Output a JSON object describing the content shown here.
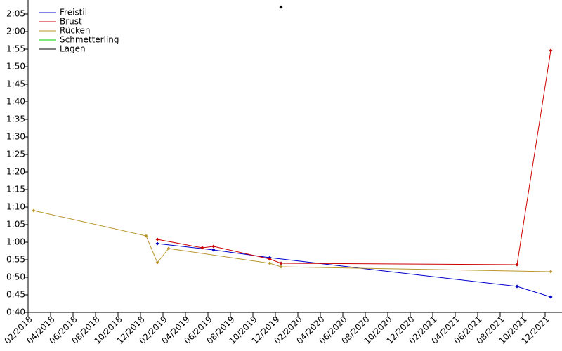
{
  "chart_data": {
    "type": "line",
    "series": [
      {
        "name": "Freistil",
        "color": "#0000cc",
        "x": [
          "2019-01",
          "2019-06",
          "2019-11",
          "2021-09",
          "2021-12"
        ],
        "values": [
          59.6,
          57.8,
          55.6,
          47.4,
          44.4
        ]
      },
      {
        "name": "Brust",
        "color": "#cc0000",
        "x": [
          "2019-01",
          "2019-05",
          "2019-06",
          "2019-11",
          "2019-12",
          "2021-09",
          "2021-12"
        ],
        "values": [
          60.8,
          58.4,
          58.8,
          55.2,
          54.0,
          53.6,
          114.6
        ]
      },
      {
        "name": "Rücken",
        "color": "#b8962e",
        "x": [
          "2018-02",
          "2018-12",
          "2019-01",
          "2019-02",
          "2019-11",
          "2019-12",
          "2021-12"
        ],
        "values": [
          69,
          61.8,
          54.2,
          58.2,
          54.0,
          53,
          51.6
        ]
      },
      {
        "name": "Schmetterling",
        "color": "#00cc00",
        "x": [],
        "values": []
      },
      {
        "name": "Lagen",
        "color": "#000000",
        "x": [
          "2019-12"
        ],
        "values": [
          127
        ]
      }
    ],
    "xlim": [
      "2018-02",
      "2022-01"
    ],
    "xticks": [
      {
        "value": "2018-02",
        "label": "02/2018"
      },
      {
        "value": "2018-04",
        "label": "04/2018"
      },
      {
        "value": "2018-06",
        "label": "06/2018"
      },
      {
        "value": "2018-08",
        "label": "08/2018"
      },
      {
        "value": "2018-10",
        "label": "10/2018"
      },
      {
        "value": "2018-12",
        "label": "12/2018"
      },
      {
        "value": "2019-02",
        "label": "02/2019"
      },
      {
        "value": "2019-04",
        "label": "04/2019"
      },
      {
        "value": "2019-06",
        "label": "06/2019"
      },
      {
        "value": "2019-08",
        "label": "08/2019"
      },
      {
        "value": "2019-10",
        "label": "10/2019"
      },
      {
        "value": "2019-12",
        "label": "12/2019"
      },
      {
        "value": "2020-02",
        "label": "02/2020"
      },
      {
        "value": "2020-04",
        "label": "04/2020"
      },
      {
        "value": "2020-06",
        "label": "06/2020"
      },
      {
        "value": "2020-08",
        "label": "08/2020"
      },
      {
        "value": "2020-10",
        "label": "10/2020"
      },
      {
        "value": "2020-12",
        "label": "12/2020"
      },
      {
        "value": "2021-02",
        "label": "02/2021"
      },
      {
        "value": "2021-04",
        "label": "04/2021"
      },
      {
        "value": "2021-06",
        "label": "06/2021"
      },
      {
        "value": "2021-08",
        "label": "08/2021"
      },
      {
        "value": "2021-10",
        "label": "10/2021"
      },
      {
        "value": "2021-12",
        "label": "12/2021"
      }
    ],
    "ylim": [
      40,
      128
    ],
    "yticks": [
      {
        "value": 40,
        "label": "0:40"
      },
      {
        "value": 45,
        "label": "0:45"
      },
      {
        "value": 50,
        "label": "0:50"
      },
      {
        "value": 55,
        "label": "0:55"
      },
      {
        "value": 60,
        "label": "1:00"
      },
      {
        "value": 65,
        "label": "1:05"
      },
      {
        "value": 70,
        "label": "1:10"
      },
      {
        "value": 75,
        "label": "1:15"
      },
      {
        "value": 80,
        "label": "1:20"
      },
      {
        "value": 85,
        "label": "1:25"
      },
      {
        "value": 90,
        "label": "1:30"
      },
      {
        "value": 95,
        "label": "1:35"
      },
      {
        "value": 100,
        "label": "1:40"
      },
      {
        "value": 105,
        "label": "1:45"
      },
      {
        "value": 110,
        "label": "1:50"
      },
      {
        "value": 115,
        "label": "1:55"
      },
      {
        "value": 120,
        "label": "2:00"
      },
      {
        "value": 125,
        "label": "2:05"
      }
    ],
    "legend": "top-left"
  }
}
